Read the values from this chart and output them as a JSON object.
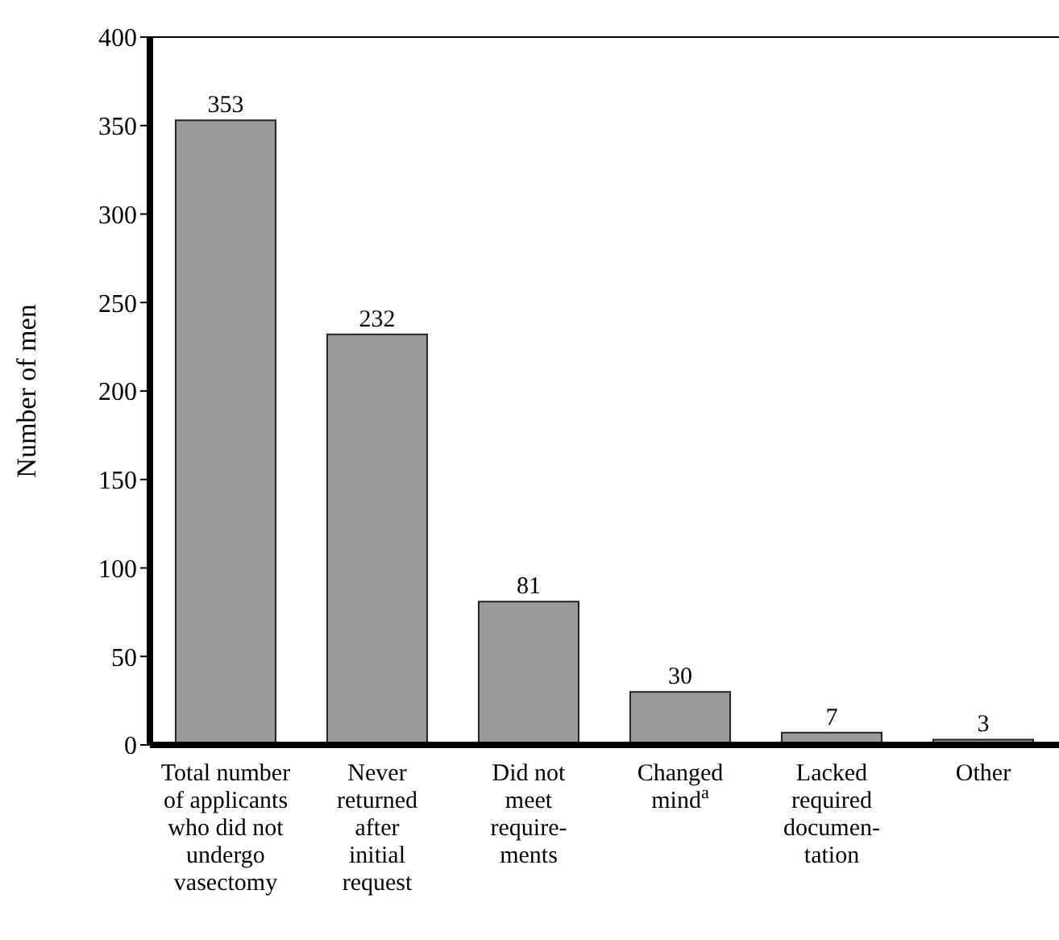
{
  "chart_data": {
    "type": "bar",
    "ylabel": "Number of men",
    "categories": [
      "Total number\nof applicants\nwho did not\nundergo\nvasectomy",
      "Never\nreturned\nafter\ninitial\nrequest",
      "Did not\nmeet\nrequire-\nments",
      "Changed\nmind$^{a}$",
      "Lacked\nrequired\ndocumen-\ntation",
      "Other"
    ],
    "values": [
      353,
      232,
      81,
      30,
      7,
      3
    ],
    "color": "#999a9c",
    "ylim": [
      0,
      400
    ],
    "yticks": [
      0,
      50,
      100,
      150,
      200,
      250,
      300,
      350,
      400
    ],
    "data_labels": true
  }
}
